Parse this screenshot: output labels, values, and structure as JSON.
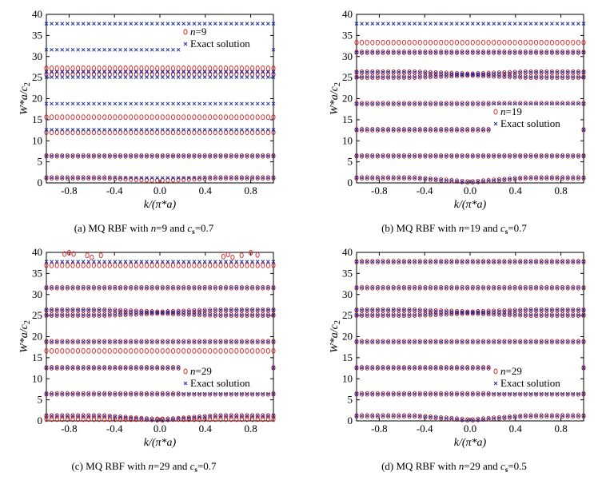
{
  "colors": {
    "approx": "#d42020",
    "exact": "#1a2f9e"
  },
  "panels": [
    {
      "caption": "(a) MQ RBF with n=9 and cs=0.7",
      "caption_parts": [
        "(a) MQ RBF with ",
        "n",
        "=9 and ",
        "c",
        "s",
        "=0.7"
      ],
      "legend": {
        "approx_label": [
          "n",
          "=9"
        ],
        "exact_label": "Exact solution",
        "position": "top-right"
      }
    },
    {
      "caption": "(b) MQ RBF with n=19 and cs=0.7",
      "caption_parts": [
        "(b) MQ RBF with ",
        "n",
        "=19 and ",
        "c",
        "s",
        "=0.7"
      ],
      "legend": {
        "approx_label": [
          "n",
          "=19"
        ],
        "exact_label": "Exact solution",
        "position": "middle-right"
      }
    },
    {
      "caption": "(c) MQ RBF with n=29 and cs=0.7",
      "caption_parts": [
        "(c) MQ RBF with ",
        "n",
        "=29 and ",
        "c",
        "s",
        "=0.7"
      ],
      "legend": {
        "approx_label": [
          "n",
          "=29"
        ],
        "exact_label": "Exact solution",
        "position": "lower-middle"
      }
    },
    {
      "caption": "(d) MQ RBF with n=29 and cs=0.5",
      "caption_parts": [
        "(d) MQ RBF with ",
        "n",
        "=29 and ",
        "c",
        "s",
        "=0.5"
      ],
      "legend": {
        "approx_label": [
          "n",
          "=29"
        ],
        "exact_label": "Exact solution",
        "position": "lower-middle"
      }
    }
  ],
  "chart_data": [
    {
      "type": "scatter",
      "xlabel": "k/(π*a)",
      "ylabel": "W*a/c2",
      "xlim": [
        -1,
        1
      ],
      "ylim": [
        0,
        40
      ],
      "xticks": [
        "-0.8",
        "-0.4",
        "0.0",
        "0.4",
        "0.8"
      ],
      "yticks": [
        "0",
        "5",
        "10",
        "15",
        "20",
        "25",
        "30",
        "35",
        "40"
      ],
      "exact_bands": [
        {
          "y0": 1.2,
          "dip": 0
        },
        {
          "y0": 6.4,
          "dip": 0
        },
        {
          "y0": 12.6,
          "dip": 0
        },
        {
          "y0": 18.8,
          "dip": 0
        },
        {
          "y0": 25.1,
          "dip": 0
        },
        {
          "y0": 26.3,
          "dip": 0
        },
        {
          "y0": 31.6,
          "dip": 0
        },
        {
          "y0": 37.8,
          "dip": 0
        }
      ],
      "approx_bands": [
        {
          "y0": 1.2,
          "dip": 0.6
        },
        {
          "y0": 6.4,
          "dip": 0
        },
        {
          "y0": 12.0,
          "dip": 0
        },
        {
          "y0": 15.6,
          "dip": 0
        },
        {
          "y0": 25.8,
          "dip": 0
        },
        {
          "y0": 27.2,
          "dip": 0
        }
      ],
      "approx_outliers": []
    },
    {
      "type": "scatter",
      "xlabel": "k/(π*a)",
      "ylabel": "W*a/c2",
      "xlim": [
        -1,
        1
      ],
      "ylim": [
        0,
        40
      ],
      "xticks": [
        "-0.8",
        "-0.4",
        "0.0",
        "0.4",
        "0.8"
      ],
      "yticks": [
        "0",
        "5",
        "10",
        "15",
        "20",
        "25",
        "30",
        "35",
        "40"
      ],
      "exact_bands": [
        {
          "y0": 1.2,
          "dip": 1.0
        },
        {
          "y0": 6.4,
          "dip": 0
        },
        {
          "y0": 12.6,
          "dip": 0
        },
        {
          "y0": 18.8,
          "dip": 0
        },
        {
          "y0": 25.1,
          "dip": -0.5
        },
        {
          "y0": 26.3,
          "dip": 0.5
        },
        {
          "y0": 31.0,
          "dip": 0
        },
        {
          "y0": 37.8,
          "dip": 0
        }
      ],
      "approx_bands": [
        {
          "y0": 1.2,
          "dip": 1.0
        },
        {
          "y0": 6.4,
          "dip": 0
        },
        {
          "y0": 12.6,
          "dip": 0
        },
        {
          "y0": 18.8,
          "dip": 0
        },
        {
          "y0": 25.1,
          "dip": -0.5
        },
        {
          "y0": 26.3,
          "dip": 0.5
        },
        {
          "y0": 31.0,
          "dip": 0
        },
        {
          "y0": 33.3,
          "dip": 0
        }
      ],
      "approx_outliers": []
    },
    {
      "type": "scatter",
      "xlabel": "k/(π*a)",
      "ylabel": "W*a/c2",
      "xlim": [
        -1,
        1
      ],
      "ylim": [
        0,
        40
      ],
      "xticks": [
        "-0.8",
        "-0.4",
        "0.0",
        "0.4",
        "0.8"
      ],
      "yticks": [
        "0",
        "5",
        "10",
        "15",
        "20",
        "25",
        "30",
        "35",
        "40"
      ],
      "exact_bands": [
        {
          "y0": 1.2,
          "dip": 1.0
        },
        {
          "y0": 6.4,
          "dip": 0
        },
        {
          "y0": 12.6,
          "dip": 0
        },
        {
          "y0": 18.8,
          "dip": 0
        },
        {
          "y0": 25.1,
          "dip": -0.5
        },
        {
          "y0": 26.3,
          "dip": 0.5
        },
        {
          "y0": 31.6,
          "dip": 0
        },
        {
          "y0": 37.8,
          "dip": 0
        }
      ],
      "approx_bands": [
        {
          "y0": 0.4,
          "dip": 0
        },
        {
          "y0": 1.2,
          "dip": 1.0
        },
        {
          "y0": 6.4,
          "dip": 0
        },
        {
          "y0": 12.6,
          "dip": 0
        },
        {
          "y0": 16.6,
          "dip": 0
        },
        {
          "y0": 18.8,
          "dip": 0
        },
        {
          "y0": 25.1,
          "dip": -0.5
        },
        {
          "y0": 26.3,
          "dip": 0.5
        },
        {
          "y0": 31.6,
          "dip": 0
        },
        {
          "y0": 36.9,
          "dip": 0
        }
      ],
      "approx_outliers": [
        {
          "x": -0.84,
          "y": 39.6
        },
        {
          "x": -0.8,
          "y": 39.9
        },
        {
          "x": -0.76,
          "y": 39.6
        },
        {
          "x": -0.64,
          "y": 39.3
        },
        {
          "x": -0.6,
          "y": 38.8
        },
        {
          "x": -0.52,
          "y": 39.3
        },
        {
          "x": 0.56,
          "y": 39.0
        },
        {
          "x": 0.6,
          "y": 39.5
        },
        {
          "x": 0.64,
          "y": 38.8
        },
        {
          "x": 0.72,
          "y": 39.3
        },
        {
          "x": 0.8,
          "y": 39.9
        },
        {
          "x": 0.86,
          "y": 39.4
        }
      ]
    },
    {
      "type": "scatter",
      "xlabel": "k/(π*a)",
      "ylabel": "W*a/c2",
      "xlim": [
        -1,
        1
      ],
      "ylim": [
        0,
        40
      ],
      "xticks": [
        "-0.8",
        "-0.4",
        "0.0",
        "0.4",
        "0.8"
      ],
      "yticks": [
        "0",
        "5",
        "10",
        "15",
        "20",
        "25",
        "30",
        "35",
        "40"
      ],
      "exact_bands": [
        {
          "y0": 1.2,
          "dip": 1.0
        },
        {
          "y0": 6.4,
          "dip": 0
        },
        {
          "y0": 12.6,
          "dip": 0
        },
        {
          "y0": 18.8,
          "dip": 0
        },
        {
          "y0": 25.1,
          "dip": -0.5
        },
        {
          "y0": 26.3,
          "dip": 0.5
        },
        {
          "y0": 31.6,
          "dip": 0
        },
        {
          "y0": 37.8,
          "dip": 0
        }
      ],
      "approx_bands": [
        {
          "y0": 1.2,
          "dip": 1.0
        },
        {
          "y0": 6.4,
          "dip": 0
        },
        {
          "y0": 12.6,
          "dip": 0
        },
        {
          "y0": 18.8,
          "dip": 0
        },
        {
          "y0": 25.1,
          "dip": -0.5
        },
        {
          "y0": 26.3,
          "dip": 0.5
        },
        {
          "y0": 31.6,
          "dip": 0
        },
        {
          "y0": 37.8,
          "dip": 0
        }
      ],
      "approx_outliers": []
    }
  ]
}
